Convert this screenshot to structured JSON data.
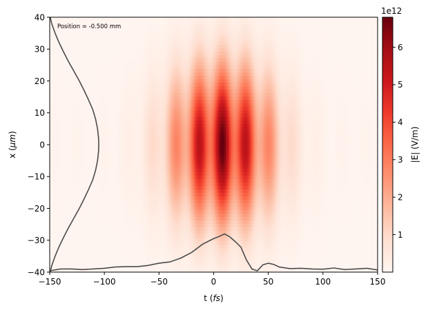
{
  "chart_data": {
    "type": "heatmap",
    "annotation": "Position = -0.500 mm",
    "xlabel": "t",
    "xlabel_unit": "fs",
    "ylabel": "x",
    "ylabel_unit": "μm",
    "xlim": [
      -150,
      150
    ],
    "ylim": [
      -40,
      40
    ],
    "x_ticks": [
      -150,
      -100,
      -50,
      0,
      50,
      100,
      150
    ],
    "y_ticks": [
      -40,
      -30,
      -20,
      -10,
      0,
      10,
      20,
      30,
      40
    ],
    "colorbar": {
      "label": "|E| (V/m)",
      "offset_text": "1e12",
      "colormap": "Reds",
      "range": [
        0,
        6.8
      ],
      "ticks": [
        1,
        2,
        3,
        4,
        5,
        6
      ]
    },
    "field": {
      "peak_amplitude": 6.8,
      "peak_t": 8,
      "peak_x": 0,
      "envelope_sigma_t": 32,
      "envelope_sigma_x": 17,
      "modulation_period_t": 22,
      "spatial_profile_sigma_x": 13
    },
    "lineout_t": {
      "t": [
        -150,
        -140,
        -130,
        -120,
        -110,
        -100,
        -90,
        -80,
        -70,
        -60,
        -50,
        -40,
        -30,
        -20,
        -10,
        0,
        5,
        10,
        15,
        20,
        25,
        30,
        35,
        40,
        45,
        50,
        55,
        60,
        70,
        80,
        90,
        100,
        110,
        120,
        130,
        140,
        150
      ],
      "x": [
        -39.6,
        -39.0,
        -39.0,
        -39.2,
        -39.0,
        -38.8,
        -38.4,
        -38.3,
        -38.3,
        -37.9,
        -37.2,
        -36.8,
        -35.6,
        -33.8,
        -31.2,
        -29.5,
        -28.8,
        -28.0,
        -29.0,
        -30.5,
        -32.2,
        -36.2,
        -39.0,
        -39.6,
        -37.7,
        -37.2,
        -37.6,
        -38.4,
        -38.9,
        -38.8,
        -39.0,
        -39.1,
        -38.7,
        -39.2,
        -39.0,
        -38.8,
        -39.3
      ],
      "color": "#4a4a4a"
    },
    "lineout_x": {
      "x": [
        -40,
        -38,
        -35,
        -32,
        -29,
        -26,
        -23,
        -20,
        -17,
        -14,
        -11,
        -8,
        -5,
        -2,
        0,
        2,
        5,
        8,
        11,
        14,
        17,
        20,
        23,
        26,
        29,
        32,
        35,
        38,
        40
      ],
      "t": [
        -149.5,
        -148.2,
        -145.1,
        -141.4,
        -137.2,
        -132.7,
        -127.8,
        -122.9,
        -118.5,
        -114.4,
        -110.6,
        -108.0,
        -106.2,
        -105.3,
        -105.1,
        -105.3,
        -106.2,
        -108.0,
        -110.6,
        -114.4,
        -118.5,
        -122.9,
        -127.8,
        -132.7,
        -137.2,
        -141.4,
        -145.1,
        -148.2,
        -149.5
      ],
      "color": "#4a4a4a"
    }
  }
}
